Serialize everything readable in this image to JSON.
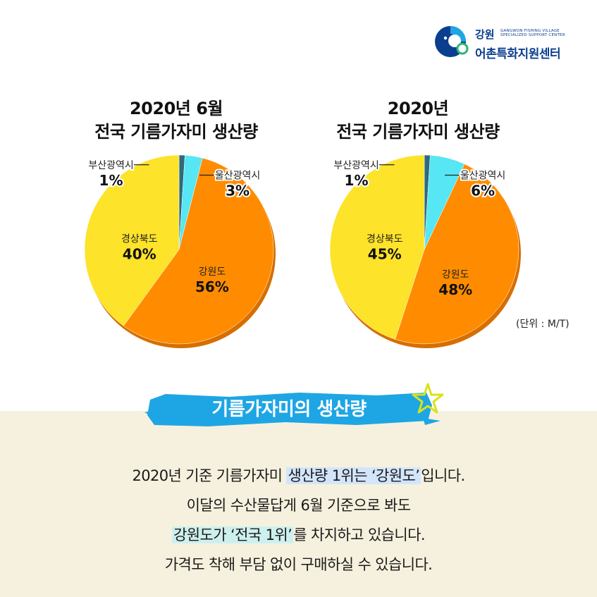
{
  "logo": {
    "line1": "강원",
    "english": "GANGWON FISHING VILLAGE SPECIALIZED SUPPORT CENTER",
    "line2": "어촌특화지원센터"
  },
  "chart_data": [
    {
      "type": "pie",
      "title": [
        "2020년 6월",
        "전국 기름가자미 생산량"
      ],
      "slices": [
        {
          "label": "부산광역시",
          "value": 1,
          "display": "1%",
          "color": "#2d6a7d"
        },
        {
          "label": "울산광역시",
          "value": 3,
          "display": "3%",
          "color": "#57e6f4"
        },
        {
          "label": "강원도",
          "value": 56,
          "display": "56%",
          "color": "#ff8c00"
        },
        {
          "label": "경상북도",
          "value": 40,
          "display": "40%",
          "color": "#fde329"
        }
      ]
    },
    {
      "type": "pie",
      "title": [
        "2020년",
        "전국 기름가자미 생산량"
      ],
      "slices": [
        {
          "label": "부산광역시",
          "value": 1,
          "display": "1%",
          "color": "#2d6a7d"
        },
        {
          "label": "울산광역시",
          "value": 6,
          "display": "6%",
          "color": "#57e6f4"
        },
        {
          "label": "강원도",
          "value": 48,
          "display": "48%",
          "color": "#ff8c00"
        },
        {
          "label": "경상북도",
          "value": 45,
          "display": "45%",
          "color": "#fde329"
        }
      ]
    }
  ],
  "unit_label": "(단위 : M/T)",
  "banner": {
    "title": "기름가자미의 생산량"
  },
  "body": {
    "line1_a": "2020년 기준 기름가자미 ",
    "line1_b": "생산량 1위는 ‘강원도’",
    "line1_c": "입니다.",
    "line2": "이달의 수산물답게 6월 기준으로 봐도",
    "line3_a": "강원도가 ‘전국 1위’",
    "line3_b": "를 차지하고 있습니다.",
    "line4": "가격도 착해 부담 없이 구매하실 수 있습니다."
  },
  "colors": {
    "orange": "#ff8c00",
    "yellow": "#fde329",
    "cyan": "#57e6f4",
    "teal": "#2d6a7d",
    "banner_blue": "#1ea6e4",
    "panel_beige": "#f6f1de"
  }
}
